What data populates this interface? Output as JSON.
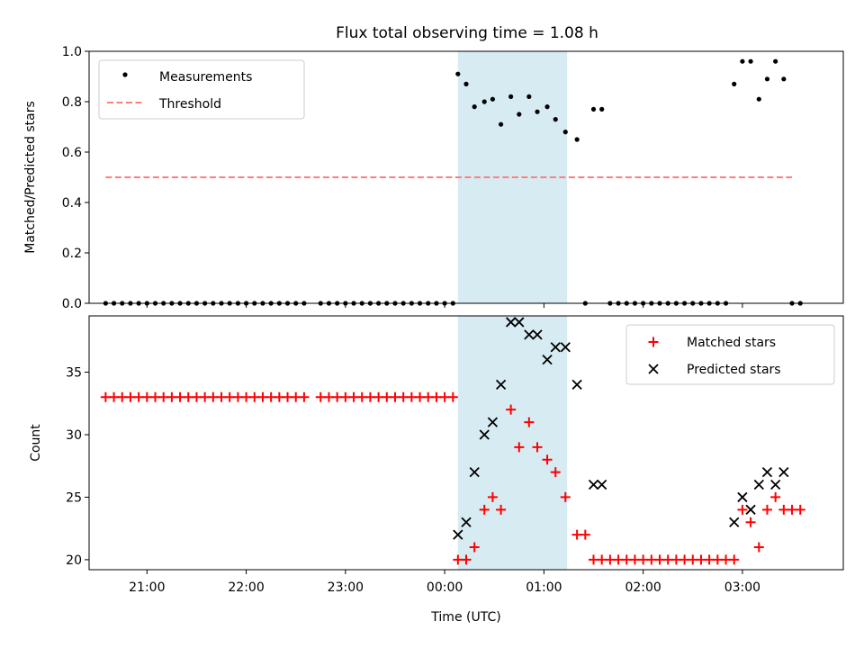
{
  "title": "Flux total observing time = 1.08 h",
  "chart_data": [
    {
      "type": "scatter",
      "ylabel": "Matched/Predicted stars",
      "ylim": [
        0,
        1.0
      ],
      "yticks": [
        "0.0",
        "0.2",
        "0.4",
        "0.6",
        "0.8",
        "1.0"
      ],
      "ytick_values": [
        0,
        0.2,
        0.4,
        0.6,
        0.8,
        1.0
      ],
      "highlight_span": [
        "00:08",
        "01:14"
      ],
      "legend": [
        {
          "label": "Measurements",
          "marker": "dot",
          "color": "#000000"
        },
        {
          "label": "Threshold",
          "marker": "dashed-line",
          "color": "#ff7f7f"
        }
      ],
      "legend_placement": "upper-left",
      "threshold": {
        "value": 0.5,
        "x_start": "20:35",
        "x_end": "03:30"
      },
      "series": [
        {
          "name": "Measurements",
          "x": [
            "20:35",
            "20:40",
            "20:45",
            "20:50",
            "20:55",
            "21:00",
            "21:05",
            "21:10",
            "21:15",
            "21:20",
            "21:25",
            "21:30",
            "21:35",
            "21:40",
            "21:45",
            "21:50",
            "21:55",
            "22:00",
            "22:05",
            "22:10",
            "22:15",
            "22:20",
            "22:25",
            "22:30",
            "22:35",
            "22:45",
            "22:50",
            "22:55",
            "23:00",
            "23:05",
            "23:10",
            "23:15",
            "23:20",
            "23:25",
            "23:30",
            "23:35",
            "23:40",
            "23:45",
            "23:50",
            "23:55",
            "00:00",
            "00:05",
            "00:08",
            "00:13",
            "00:18",
            "00:24",
            "00:29",
            "00:34",
            "00:40",
            "00:45",
            "00:51",
            "00:56",
            "01:02",
            "01:07",
            "01:13",
            "01:20",
            "01:25",
            "01:30",
            "01:35",
            "01:40",
            "01:45",
            "01:50",
            "01:55",
            "02:00",
            "02:05",
            "02:10",
            "02:15",
            "02:20",
            "02:25",
            "02:30",
            "02:35",
            "02:40",
            "02:45",
            "02:50",
            "02:55",
            "03:00",
            "03:05",
            "03:10",
            "03:15",
            "03:20",
            "03:25",
            "03:30",
            "03:35"
          ],
          "y": [
            0,
            0,
            0,
            0,
            0,
            0,
            0,
            0,
            0,
            0,
            0,
            0,
            0,
            0,
            0,
            0,
            0,
            0,
            0,
            0,
            0,
            0,
            0,
            0,
            0,
            0,
            0,
            0,
            0,
            0,
            0,
            0,
            0,
            0,
            0,
            0,
            0,
            0,
            0,
            0,
            0,
            0,
            0.91,
            0.87,
            0.78,
            0.8,
            0.81,
            0.71,
            0.82,
            0.75,
            0.82,
            0.76,
            0.78,
            0.73,
            0.68,
            0.65,
            0,
            0.77,
            0.77,
            0,
            0,
            0,
            0,
            0,
            0,
            0,
            0,
            0,
            0,
            0,
            0,
            0,
            0,
            0,
            0.87,
            0.96,
            0.96,
            0.81,
            0.89,
            0.96,
            0.89,
            0,
            0
          ]
        }
      ]
    },
    {
      "type": "scatter",
      "xlabel": "Time (UTC)",
      "ylabel": "Count",
      "ylim": [
        19.2,
        39.5
      ],
      "yticks": [
        "20",
        "25",
        "30",
        "35"
      ],
      "ytick_values": [
        20,
        25,
        30,
        35
      ],
      "x_ticks": [
        "21:00",
        "22:00",
        "23:00",
        "00:00",
        "01:00",
        "02:00",
        "03:00"
      ],
      "x_tick_values": [
        "21:00",
        "22:00",
        "23:00",
        "00:00",
        "01:00",
        "02:00",
        "03:00"
      ],
      "x_range": [
        "20:25",
        "04:01"
      ],
      "highlight_span": [
        "00:08",
        "01:14"
      ],
      "legend": [
        {
          "label": "Matched stars",
          "marker": "plus",
          "color": "#ff0000"
        },
        {
          "label": "Predicted stars",
          "marker": "x",
          "color": "#000000"
        }
      ],
      "legend_placement": "upper-right",
      "series": [
        {
          "name": "Matched stars",
          "x": [
            "20:35",
            "20:40",
            "20:45",
            "20:50",
            "20:55",
            "21:00",
            "21:05",
            "21:10",
            "21:15",
            "21:20",
            "21:25",
            "21:30",
            "21:35",
            "21:40",
            "21:45",
            "21:50",
            "21:55",
            "22:00",
            "22:05",
            "22:10",
            "22:15",
            "22:20",
            "22:25",
            "22:30",
            "22:35",
            "22:45",
            "22:50",
            "22:55",
            "23:00",
            "23:05",
            "23:10",
            "23:15",
            "23:20",
            "23:25",
            "23:30",
            "23:35",
            "23:40",
            "23:45",
            "23:50",
            "23:55",
            "00:00",
            "00:05",
            "00:08",
            "00:13",
            "00:18",
            "00:24",
            "00:29",
            "00:34",
            "00:40",
            "00:45",
            "00:51",
            "00:56",
            "01:02",
            "01:07",
            "01:13",
            "01:20",
            "01:25",
            "01:30",
            "01:35",
            "01:40",
            "01:45",
            "01:50",
            "01:55",
            "02:00",
            "02:05",
            "02:10",
            "02:15",
            "02:20",
            "02:25",
            "02:30",
            "02:35",
            "02:40",
            "02:45",
            "02:50",
            "02:55",
            "03:00",
            "03:05",
            "03:10",
            "03:15",
            "03:20",
            "03:25",
            "03:30",
            "03:35"
          ],
          "y": [
            33,
            33,
            33,
            33,
            33,
            33,
            33,
            33,
            33,
            33,
            33,
            33,
            33,
            33,
            33,
            33,
            33,
            33,
            33,
            33,
            33,
            33,
            33,
            33,
            33,
            33,
            33,
            33,
            33,
            33,
            33,
            33,
            33,
            33,
            33,
            33,
            33,
            33,
            33,
            33,
            33,
            33,
            20,
            20,
            21,
            24,
            25,
            24,
            32,
            29,
            31,
            29,
            28,
            27,
            25,
            22,
            22,
            20,
            20,
            20,
            20,
            20,
            20,
            20,
            20,
            20,
            20,
            20,
            20,
            20,
            20,
            20,
            20,
            20,
            20,
            24,
            23,
            21,
            24,
            25,
            24,
            24,
            24
          ]
        },
        {
          "name": "Predicted stars",
          "x": [
            "00:00",
            "00:05",
            "00:08",
            "00:13",
            "00:18",
            "00:24",
            "00:29",
            "00:34",
            "00:40",
            "00:45",
            "00:51",
            "00:56",
            "01:02",
            "01:07",
            "01:13",
            "01:20",
            "01:25",
            "01:30",
            "01:35",
            "01:40",
            "01:45",
            "01:50",
            "01:55",
            "02:00",
            "02:05",
            "02:10",
            "02:15",
            "02:20",
            "02:25",
            "02:30",
            "02:35",
            "02:40",
            "02:45",
            "02:50",
            "02:55",
            "03:00",
            "03:05",
            "03:10",
            "03:15",
            "03:20",
            "03:25"
          ],
          "y": [
            null,
            null,
            22,
            23,
            27,
            30,
            31,
            34,
            39,
            39,
            38,
            38,
            36,
            37,
            37,
            34,
            null,
            26,
            26,
            null,
            null,
            null,
            null,
            null,
            null,
            null,
            null,
            null,
            null,
            null,
            null,
            null,
            null,
            null,
            23,
            25,
            24,
            26,
            27,
            26,
            27
          ]
        }
      ]
    }
  ]
}
